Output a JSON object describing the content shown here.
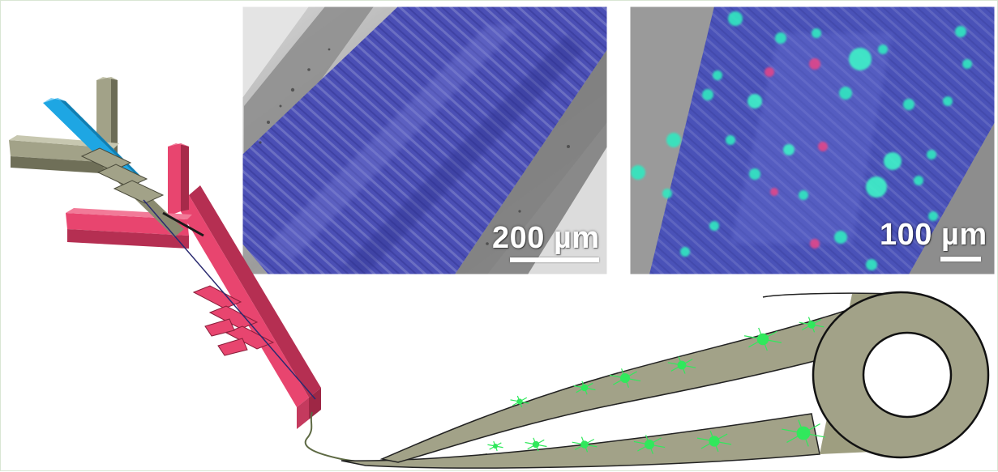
{
  "micrographs": [
    {
      "scale_bar": "200 µm"
    },
    {
      "scale_bar": "100 µm"
    }
  ],
  "colors": {
    "inlet_blue": "#1ea6e3",
    "sheath_olive": "#a2a288",
    "outer_pink": "#e8456f",
    "fiber_olive": "#9e9e80",
    "cell_green": "#31e85c",
    "stain_blue": "#4b4fb5"
  }
}
